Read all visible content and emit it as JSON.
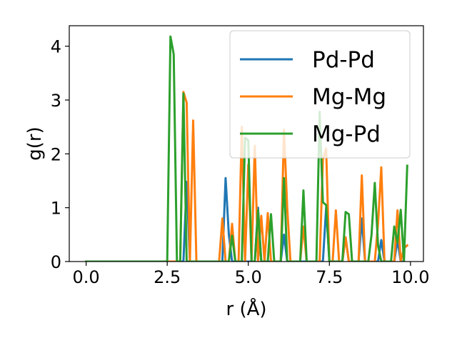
{
  "chart_data": {
    "type": "line",
    "xlabel": "r (Å)",
    "ylabel": "g(r)",
    "xlim": [
      -0.52,
      10.4
    ],
    "ylim": [
      0,
      4.38
    ],
    "xticks": [
      0.0,
      2.5,
      5.0,
      7.5,
      10.0
    ],
    "xtick_labels": [
      "0.0",
      "2.5",
      "5.0",
      "7.5",
      "10.0"
    ],
    "yticks": [
      0,
      1,
      2,
      3,
      4
    ],
    "ytick_labels": [
      "0",
      "1",
      "2",
      "3",
      "4"
    ],
    "grid": false,
    "legend_position": "upper right",
    "series": [
      {
        "name": "Pd-Pd",
        "color": "#1f77b4",
        "x": [
          0.0,
          2.9,
          3.0,
          3.1,
          3.2,
          3.3,
          4.2,
          4.3,
          4.4,
          4.5,
          4.9,
          5.0,
          5.1,
          5.2,
          5.3,
          5.4,
          5.5,
          5.6,
          6.0,
          6.1,
          6.2,
          6.3,
          6.4,
          6.5,
          6.6,
          6.7,
          7.2,
          7.3,
          7.4,
          7.5,
          7.6,
          7.8,
          7.9,
          8.0,
          8.1,
          8.2,
          8.3,
          8.4,
          8.5,
          8.6,
          8.7,
          8.9,
          9.0,
          9.1,
          9.2,
          9.3,
          9.4,
          9.5,
          9.6,
          9.7,
          9.8
        ],
        "y": [
          0.0,
          0.0,
          0.0,
          1.48,
          0.0,
          0.0,
          0.0,
          1.55,
          0.5,
          0.0,
          0.0,
          0.0,
          0.0,
          0.0,
          1.0,
          0.0,
          0.0,
          0.0,
          0.0,
          0.5,
          0.0,
          0.0,
          0.0,
          0.0,
          0.0,
          0.0,
          0.0,
          0.0,
          1.0,
          0.0,
          0.0,
          0.0,
          0.0,
          0.45,
          0.0,
          0.0,
          0.0,
          0.0,
          0.8,
          0.0,
          0.0,
          0.0,
          0.0,
          0.4,
          0.0,
          0.0,
          0.0,
          0.0,
          0.4,
          0.0,
          0.0
        ]
      },
      {
        "name": "Mg-Mg",
        "color": "#ff7f0e",
        "x": [
          0.0,
          2.9,
          3.0,
          3.1,
          3.2,
          3.3,
          3.4,
          3.5,
          4.1,
          4.2,
          4.3,
          4.4,
          4.5,
          4.6,
          4.7,
          4.8,
          4.9,
          5.0,
          5.1,
          5.2,
          5.3,
          5.4,
          5.5,
          5.6,
          5.7,
          5.8,
          5.9,
          6.0,
          6.1,
          6.2,
          6.3,
          6.4,
          6.5,
          6.6,
          6.7,
          6.8,
          6.9,
          7.0,
          7.1,
          7.2,
          7.3,
          7.4,
          7.5,
          7.6,
          7.7,
          7.8,
          7.9,
          8.0,
          8.1,
          8.2,
          8.3,
          8.4,
          8.5,
          8.6,
          8.7,
          8.8,
          8.9,
          9.0,
          9.1,
          9.2,
          9.3,
          9.4,
          9.5,
          9.6,
          9.7,
          9.8,
          9.9
        ],
        "y": [
          0.0,
          0.0,
          3.15,
          2.95,
          0.0,
          2.62,
          0.0,
          0.0,
          0.0,
          0.8,
          0.0,
          0.0,
          0.7,
          0.0,
          0.0,
          2.5,
          0.0,
          1.8,
          0.0,
          2.15,
          0.0,
          0.85,
          0.0,
          0.9,
          0.0,
          0.0,
          0.0,
          0.0,
          2.45,
          1.0,
          0.0,
          0.0,
          0.0,
          0.0,
          0.65,
          0.0,
          0.0,
          0.0,
          0.0,
          0.0,
          1.9,
          2.1,
          0.0,
          0.0,
          0.95,
          0.0,
          0.0,
          0.45,
          0.0,
          0.0,
          0.0,
          0.0,
          1.6,
          0.0,
          0.0,
          0.0,
          0.0,
          0.7,
          1.75,
          0.0,
          0.0,
          0.0,
          0.0,
          0.95,
          0.0,
          0.25,
          0.3
        ]
      },
      {
        "name": "Mg-Pd",
        "color": "#2ca02c",
        "x": [
          0.0,
          2.5,
          2.6,
          2.7,
          2.8,
          2.9,
          3.0,
          3.1,
          3.2,
          4.2,
          4.3,
          4.4,
          4.5,
          4.6,
          4.7,
          4.8,
          4.9,
          5.0,
          5.1,
          5.2,
          5.3,
          5.4,
          5.5,
          5.6,
          5.7,
          5.8,
          5.9,
          6.0,
          6.1,
          6.2,
          6.3,
          6.4,
          6.5,
          6.6,
          6.7,
          6.8,
          6.9,
          7.0,
          7.1,
          7.2,
          7.3,
          7.4,
          7.5,
          7.6,
          7.7,
          7.8,
          7.9,
          8.0,
          8.1,
          8.2,
          8.3,
          8.4,
          8.5,
          8.6,
          8.7,
          8.8,
          8.9,
          9.0,
          9.1,
          9.2,
          9.3,
          9.4,
          9.5,
          9.6,
          9.7,
          9.8,
          9.9
        ],
        "y": [
          0.0,
          0.0,
          4.18,
          3.85,
          0.0,
          0.0,
          3.12,
          0.0,
          0.0,
          0.0,
          0.0,
          0.0,
          0.48,
          0.0,
          0.0,
          0.0,
          2.3,
          2.25,
          0.0,
          0.0,
          0.95,
          0.0,
          0.0,
          0.0,
          0.88,
          0.0,
          0.0,
          0.0,
          1.55,
          0.0,
          0.0,
          0.0,
          0.0,
          0.0,
          1.32,
          0.0,
          0.0,
          0.0,
          0.0,
          2.78,
          1.1,
          1.05,
          0.0,
          0.0,
          0.0,
          0.0,
          0.0,
          0.92,
          0.88,
          0.0,
          0.0,
          0.0,
          0.0,
          0.0,
          0.0,
          0.5,
          1.46,
          0.3,
          0.0,
          0.0,
          0.0,
          0.0,
          0.65,
          0.35,
          0.96,
          0.0,
          1.78
        ]
      }
    ]
  }
}
